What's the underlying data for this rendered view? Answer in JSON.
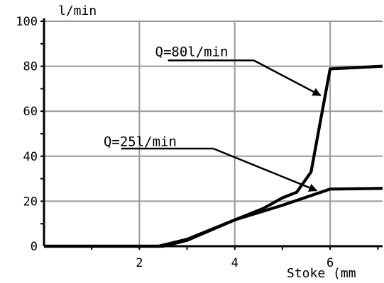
{
  "chart_data": {
    "type": "line",
    "title": "",
    "xlabel": "Stoke (mm",
    "ylabel": "l/min",
    "xlim": [
      0,
      7.1
    ],
    "ylim": [
      0,
      100
    ],
    "x_ticks": [
      0,
      2,
      4,
      6
    ],
    "x_tick_labels": [
      "",
      "2",
      "4",
      "6"
    ],
    "y_ticks": [
      0,
      20,
      40,
      60,
      80,
      100
    ],
    "y_tick_labels": [
      "0",
      "20",
      "40",
      "60",
      "80",
      "100"
    ],
    "grid": true,
    "line_color": "#000000",
    "grid_color": "#999999",
    "series": [
      {
        "x": [
          0,
          2.5,
          3.0,
          4.0,
          4.6,
          5.0,
          5.3,
          5.6,
          5.8,
          6.0,
          7.1
        ],
        "y": [
          0,
          0,
          2.6,
          11.7,
          16.8,
          21.5,
          24.0,
          33.0,
          56.0,
          78.8,
          80.0
        ]
      },
      {
        "x": [
          0,
          2.4,
          3.0,
          4.0,
          5.0,
          6.0,
          7.1
        ],
        "y": [
          0,
          0,
          3.1,
          11.7,
          18.2,
          25.4,
          25.7
        ]
      }
    ],
    "annotations": [
      {
        "text": "Q=80l/min",
        "text_x": 2.33,
        "text_y": 84.5,
        "line": [
          [
            2.6,
            82.6
          ],
          [
            4.4,
            82.6
          ]
        ],
        "arrow_from": [
          4.4,
          82.6
        ],
        "arrow_to": [
          5.8,
          67.0
        ]
      },
      {
        "text": "Q=25l/min",
        "text_x": 1.25,
        "text_y": 44.5,
        "line": [
          [
            1.62,
            43.4
          ],
          [
            3.55,
            43.4
          ]
        ],
        "arrow_from": [
          3.55,
          43.4
        ],
        "arrow_to": [
          5.72,
          24.7
        ]
      }
    ]
  }
}
